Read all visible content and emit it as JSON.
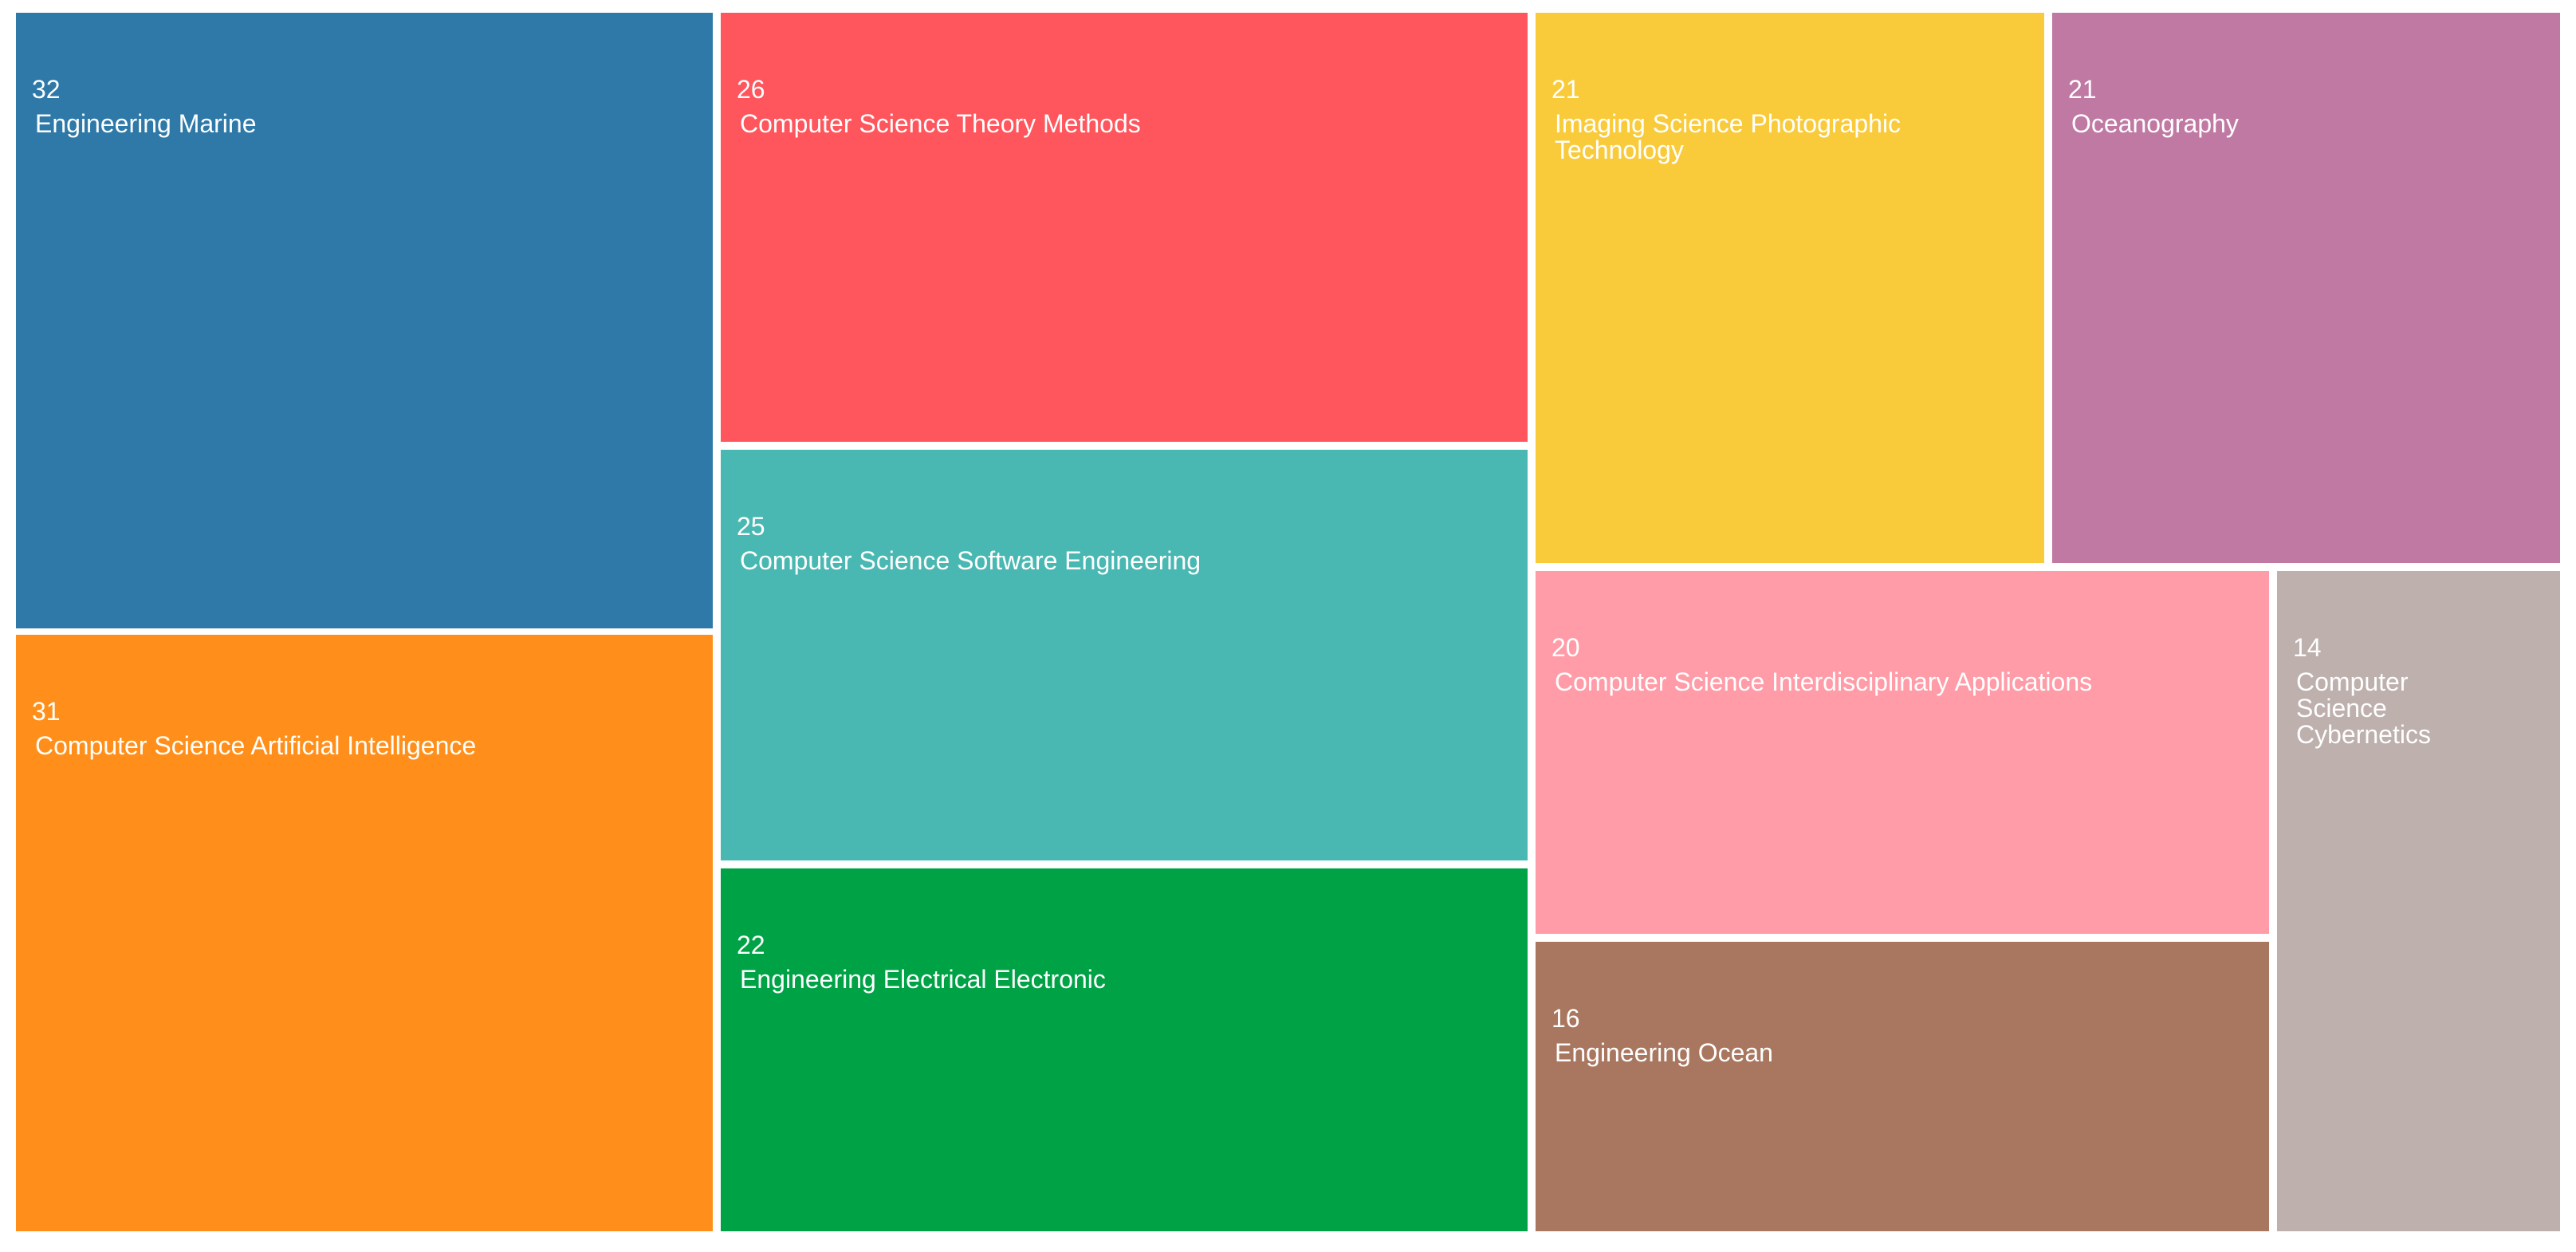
{
  "chart_data": {
    "type": "treemap",
    "title": "",
    "items": [
      {
        "label": "Engineering Marine",
        "value": 32,
        "color": "#2E79A8"
      },
      {
        "label": "Computer Science Artificial Intelligence",
        "value": 31,
        "color": "#FF8F1A"
      },
      {
        "label": "Computer Science Theory Methods",
        "value": 26,
        "color": "#FF555C"
      },
      {
        "label": "Computer Science Software Engineering",
        "value": 25,
        "color": "#49B8B2"
      },
      {
        "label": "Engineering Electrical Electronic",
        "value": 22,
        "color": "#00A246"
      },
      {
        "label": "Imaging Science Photographic Technology",
        "value": 21,
        "color": "#F9CB3B"
      },
      {
        "label": "Oceanography",
        "value": 21,
        "color": "#C079A3"
      },
      {
        "label": "Computer Science Interdisciplinary Applications",
        "value": 20,
        "color": "#FF9CA8"
      },
      {
        "label": "Engineering Ocean",
        "value": 16,
        "color": "#A9775F"
      },
      {
        "label": "Computer Science Cybernetics",
        "value": 14,
        "color": "#BDB0AD"
      }
    ]
  }
}
